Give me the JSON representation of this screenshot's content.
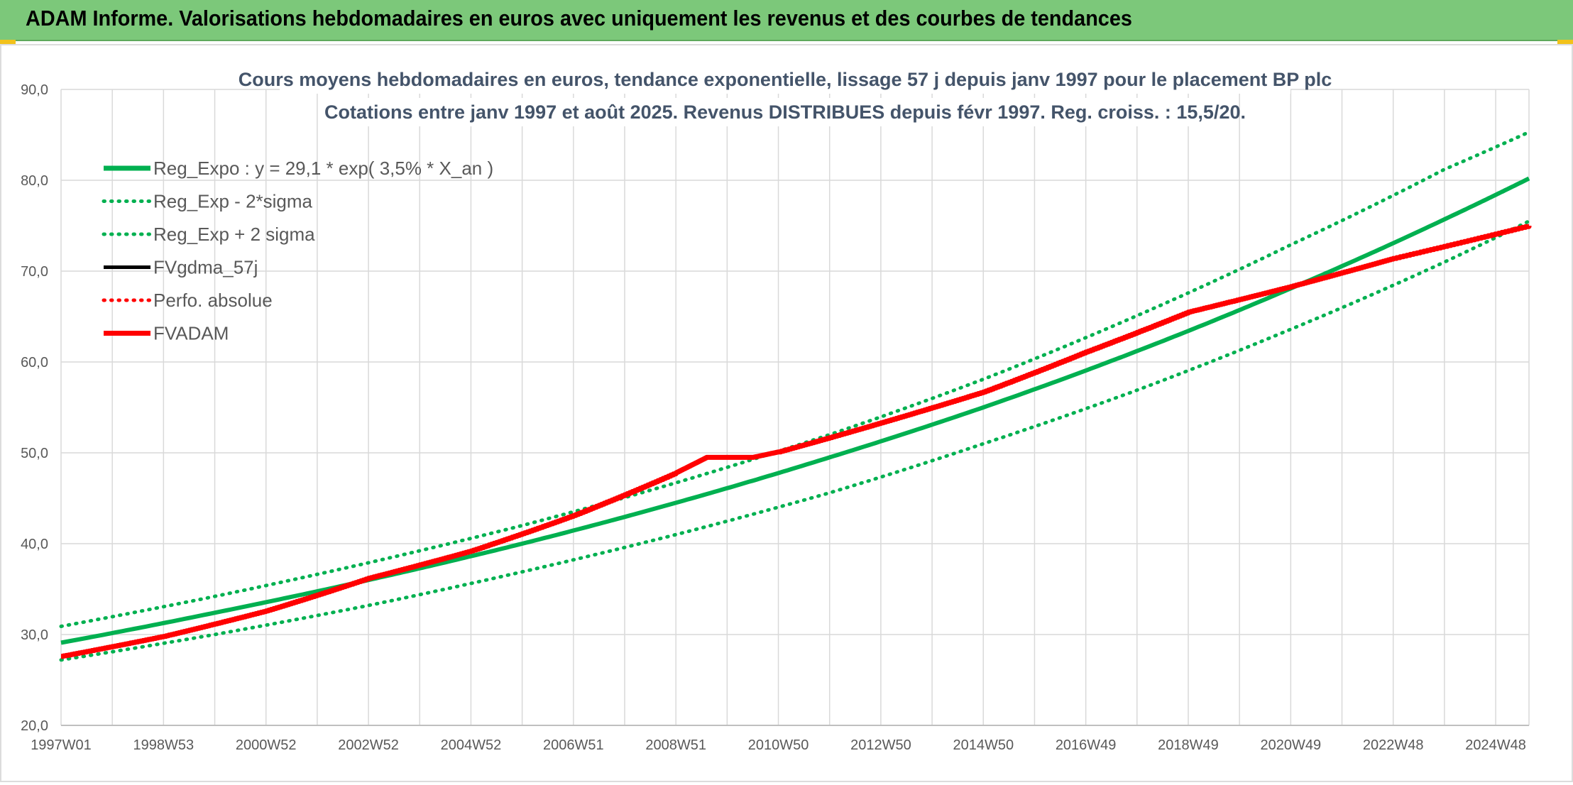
{
  "header": {
    "title": "ADAM Informe. Valorisations hebdomadaires en euros avec uniquement les revenus et des courbes de tendances"
  },
  "colors": {
    "header_bg": "#7cc87a",
    "green_series": "#00b050",
    "red_series": "#ff0000",
    "black_series": "#000000",
    "title_text": "#44546a",
    "axis_text": "#595959",
    "gridline": "#d9d9d9"
  },
  "chart_data": {
    "type": "line",
    "title": "Cours moyens hebdomadaires en euros, tendance exponentielle, lissage 57 j depuis janv 1997 pour le placement BP plc",
    "subtitle": "Cotations entre janv 1997 et août 2025. Revenus DISTRIBUES depuis févr 1997. Reg. croiss. : 15,5/20.",
    "xlabel": "",
    "ylabel": "",
    "ylim": [
      20,
      90
    ],
    "yticks": [
      "20,0",
      "30,0",
      "40,0",
      "50,0",
      "60,0",
      "70,0",
      "80,0",
      "90,0"
    ],
    "x_range_years": [
      1997.0,
      2025.65
    ],
    "x_tick_labels": [
      "1997W01",
      "1998W53",
      "2000W52",
      "2002W52",
      "2004W52",
      "2006W51",
      "2008W51",
      "2010W50",
      "2012W50",
      "2014W50",
      "2016W49",
      "2018W49",
      "2020W49",
      "2022W48",
      "2024W48"
    ],
    "x_tick_years": [
      1997.0,
      1999.0,
      2001.0,
      2003.0,
      2005.0,
      2007.0,
      2009.0,
      2011.0,
      2013.0,
      2015.0,
      2017.0,
      2019.0,
      2021.0,
      2023.0,
      2025.0
    ],
    "grid": true,
    "legend_position": "top-left",
    "series": [
      {
        "name": "Reg_Expo : y = 29,1 * exp( 3,5% *  X_an )",
        "style": "solid-thick",
        "color": "#00b050",
        "x": [
          1997.0,
          2000.0,
          2003.0,
          2006.0,
          2009.0,
          2012.0,
          2015.0,
          2018.0,
          2021.0,
          2024.0,
          2025.65
        ],
        "y": [
          29.1,
          32.4,
          36.0,
          40.0,
          44.5,
          49.5,
          55.0,
          61.2,
          68.1,
          75.7,
          80.2
        ]
      },
      {
        "name": "Reg_Exp - 2*sigma",
        "style": "dotted",
        "color": "#00b050",
        "x": [
          1997.0,
          2000.0,
          2003.0,
          2006.0,
          2009.0,
          2012.0,
          2015.0,
          2018.0,
          2021.0,
          2024.0,
          2025.65
        ],
        "y": [
          27.2,
          30.0,
          33.2,
          36.9,
          41.0,
          45.6,
          51.0,
          56.9,
          63.6,
          71.0,
          75.5
        ]
      },
      {
        "name": "Reg_Exp + 2 sigma",
        "style": "dotted",
        "color": "#00b050",
        "x": [
          1997.0,
          2000.0,
          2003.0,
          2006.0,
          2009.0,
          2012.0,
          2015.0,
          2018.0,
          2021.0,
          2024.0,
          2025.65
        ],
        "y": [
          30.9,
          34.2,
          37.9,
          42.0,
          46.7,
          52.0,
          58.1,
          65.1,
          72.9,
          81.2,
          85.3
        ]
      },
      {
        "name": "FVgdma_57j",
        "style": "solid",
        "color": "#000000",
        "x": [],
        "y": []
      },
      {
        "name": "Perfo. absolue",
        "style": "dotted",
        "color": "#ff0000",
        "x": [],
        "y": []
      },
      {
        "name": "FVADAM",
        "style": "solid-thick",
        "color": "#ff0000",
        "x": [
          1997.0,
          1999.0,
          2001.0,
          2003.0,
          2005.0,
          2007.0,
          2009.0,
          2009.6,
          2010.5,
          2011.0,
          2013.0,
          2015.0,
          2017.0,
          2019.0,
          2021.0,
          2023.0,
          2025.65
        ],
        "y": [
          27.6,
          29.8,
          32.6,
          36.2,
          39.2,
          43.1,
          47.8,
          49.5,
          49.5,
          50.1,
          53.3,
          56.7,
          61.1,
          65.5,
          68.3,
          71.4,
          75.0
        ]
      }
    ]
  }
}
